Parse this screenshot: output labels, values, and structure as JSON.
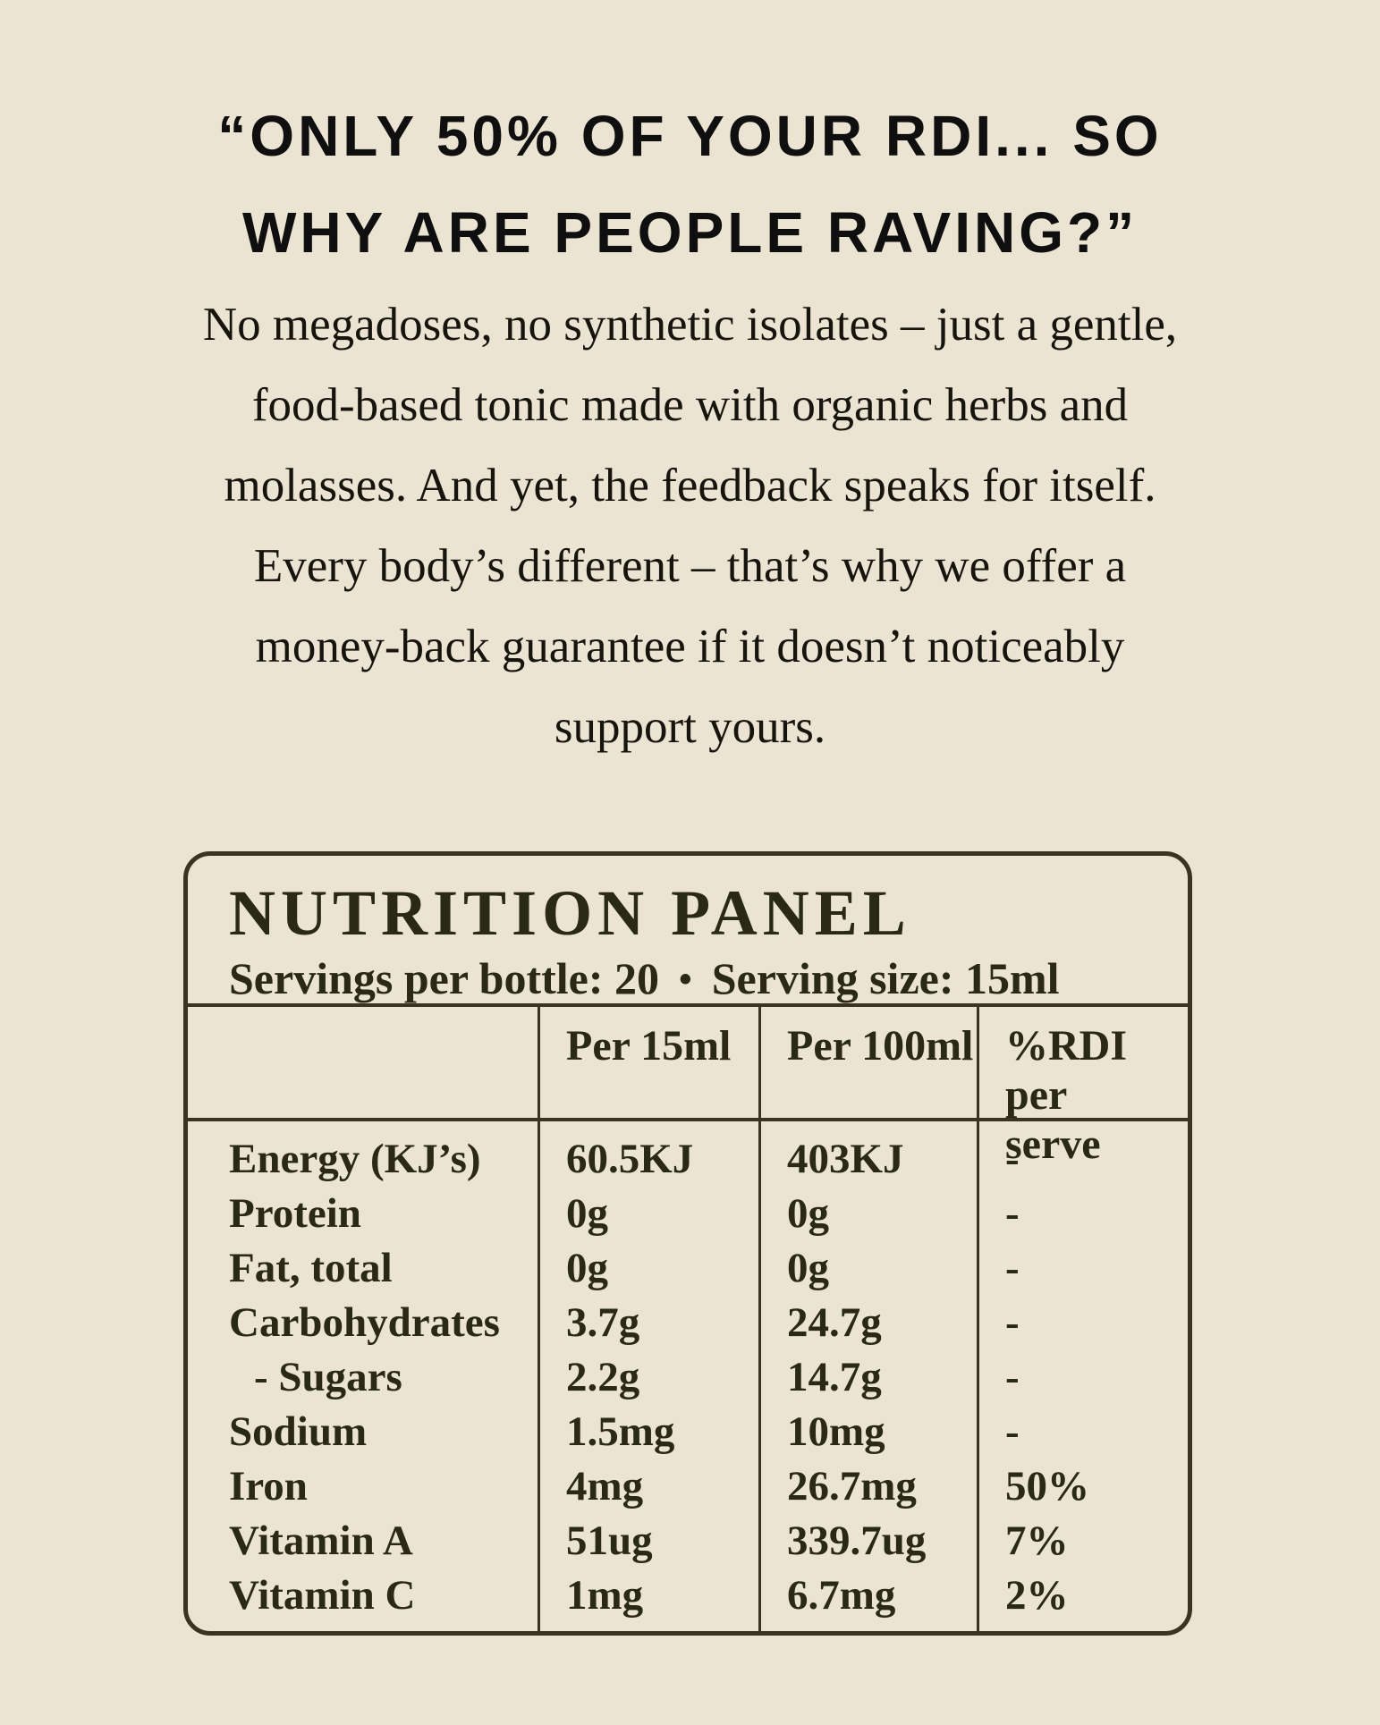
{
  "page": {
    "background_color": "#ece4d2"
  },
  "headline": {
    "color": "#0f0f0f",
    "lines": [
      "“ONLY 50% OF YOUR RDI... SO",
      "WHY ARE PEOPLE RAVING?”"
    ]
  },
  "intro": {
    "lines": [
      "No megadoses, no synthetic isolates – just a gentle,",
      "food-based tonic made with organic herbs and",
      "molasses. And yet, the feedback speaks for itself.",
      "Every body’s different – that’s why we offer a",
      "money-back guarantee if it doesn’t noticeably",
      "support yours."
    ]
  },
  "nutrition_panel": {
    "title": "NUTRITION PANEL",
    "servings_per_bottle": "Servings per bottle: 20",
    "bullet": "•",
    "serving_size": "Serving size: 15ml",
    "border_color": "#3a3323",
    "text_color": "#2a2817",
    "columns": {
      "col1": "",
      "col2": "Per 15ml",
      "col3": "Per 100ml",
      "col4": "%RDI per serve"
    },
    "rows": [
      {
        "label": "Energy (KJ’s)",
        "per_15ml": "60.5KJ",
        "per_100ml": "403KJ",
        "rdi_per_serve": "-"
      },
      {
        "label": "Protein",
        "per_15ml": "0g",
        "per_100ml": "0g",
        "rdi_per_serve": "-"
      },
      {
        "label": "Fat, total",
        "per_15ml": "0g",
        "per_100ml": "0g",
        "rdi_per_serve": "-"
      },
      {
        "label": "Carbohydrates",
        "per_15ml": "3.7g",
        "per_100ml": "24.7g",
        "rdi_per_serve": "-"
      },
      {
        "label": "- Sugars",
        "per_15ml": "2.2g",
        "per_100ml": "14.7g",
        "rdi_per_serve": "-"
      },
      {
        "label": "Sodium",
        "per_15ml": "1.5mg",
        "per_100ml": "10mg",
        "rdi_per_serve": "-"
      },
      {
        "label": "Iron",
        "per_15ml": "4mg",
        "per_100ml": "26.7mg",
        "rdi_per_serve": "50%"
      },
      {
        "label": "Vitamin A",
        "per_15ml": "51ug",
        "per_100ml": "339.7ug",
        "rdi_per_serve": "7%"
      },
      {
        "label": "Vitamin C",
        "per_15ml": "1mg",
        "per_100ml": "6.7mg",
        "rdi_per_serve": "2%"
      }
    ]
  }
}
